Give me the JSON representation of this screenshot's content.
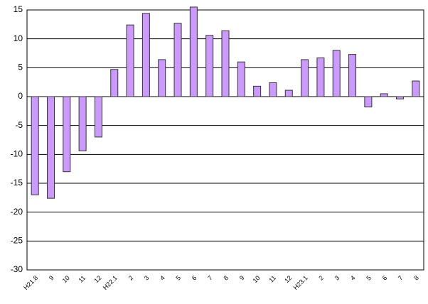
{
  "chart_data": {
    "type": "bar",
    "categories": [
      "H21.8",
      "9",
      "10",
      "11",
      "12",
      "H22.1",
      "2",
      "3",
      "4",
      "5",
      "6",
      "7",
      "8",
      "9",
      "10",
      "11",
      "12",
      "H23.1",
      "2",
      "3",
      "4",
      "5",
      "6",
      "7",
      "8"
    ],
    "values": [
      -17,
      -17.6,
      -13,
      -9.4,
      -7,
      4.7,
      12.4,
      14.4,
      6.4,
      12.7,
      15.5,
      10.6,
      11.4,
      6,
      1.8,
      2.4,
      1.1,
      6.4,
      6.7,
      8,
      7.3,
      -1.8,
      0.5,
      -0.4,
      2.7
    ],
    "color": "#cc99ff",
    "ylim": [
      -30,
      15
    ],
    "yticks": [
      -30,
      -25,
      -20,
      -15,
      -10,
      -5,
      0,
      5,
      10,
      15
    ],
    "grid": true
  }
}
